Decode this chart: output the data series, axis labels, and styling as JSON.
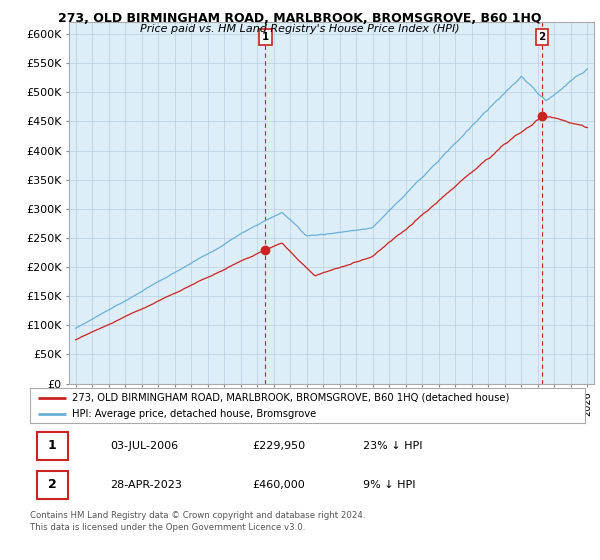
{
  "title": "273, OLD BIRMINGHAM ROAD, MARLBROOK, BROMSGROVE, B60 1HQ",
  "subtitle": "Price paid vs. HM Land Registry's House Price Index (HPI)",
  "hpi_color": "#6ab0d8",
  "price_color": "#cc2222",
  "background_color": "#ffffff",
  "chart_bg_color": "#ddeef8",
  "grid_color": "#b8cfe0",
  "ylim": [
    0,
    620000
  ],
  "yticks": [
    0,
    50000,
    100000,
    150000,
    200000,
    250000,
    300000,
    350000,
    400000,
    450000,
    500000,
    550000,
    600000
  ],
  "x_start_year": 1995,
  "x_end_year": 2026,
  "legend_label_red": "273, OLD BIRMINGHAM ROAD, MARLBROOK, BROMSGROVE, B60 1HQ (detached house)",
  "legend_label_blue": "HPI: Average price, detached house, Bromsgrove",
  "sale1_date": "03-JUL-2006",
  "sale1_price": "£229,950",
  "sale1_note": "23% ↓ HPI",
  "sale2_date": "28-APR-2023",
  "sale2_price": "£460,000",
  "sale2_note": "9% ↓ HPI",
  "footnote": "Contains HM Land Registry data © Crown copyright and database right 2024.\nThis data is licensed under the Open Government Licence v3.0."
}
